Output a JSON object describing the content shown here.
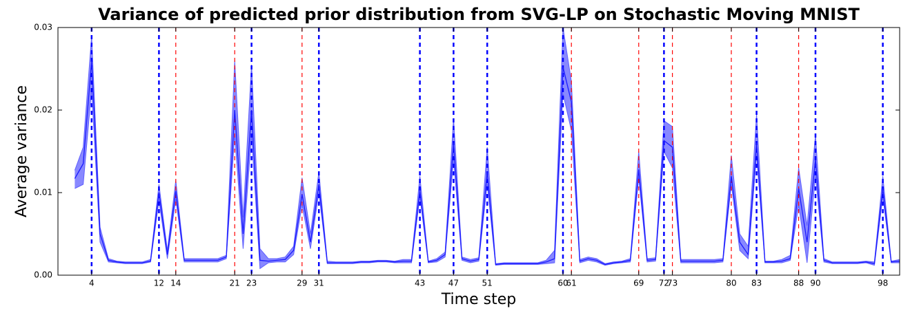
{
  "chart_data": {
    "type": "line",
    "title": "Variance of predicted prior distribution from SVG-LP on Stochastic Moving MNIST",
    "xlabel": "Time step",
    "ylabel": "Average variance",
    "x": [
      2,
      3,
      4,
      5,
      6,
      7,
      8,
      9,
      10,
      11,
      12,
      13,
      14,
      15,
      16,
      17,
      18,
      19,
      20,
      21,
      22,
      23,
      24,
      25,
      26,
      27,
      28,
      29,
      30,
      31,
      32,
      33,
      34,
      35,
      36,
      37,
      38,
      39,
      40,
      41,
      42,
      43,
      44,
      45,
      46,
      47,
      48,
      49,
      50,
      51,
      52,
      53,
      54,
      55,
      56,
      57,
      58,
      59,
      60,
      61,
      62,
      63,
      64,
      65,
      66,
      67,
      68,
      69,
      70,
      71,
      72,
      73,
      74,
      75,
      76,
      77,
      78,
      79,
      80,
      81,
      82,
      83,
      84,
      85,
      86,
      87,
      88,
      89,
      90,
      91,
      92,
      93,
      94,
      95,
      96,
      97,
      98,
      99,
      100
    ],
    "values": [
      0.0117,
      0.0135,
      0.026,
      0.005,
      0.0018,
      0.0016,
      0.0015,
      0.0015,
      0.0015,
      0.0017,
      0.01,
      0.0025,
      0.0102,
      0.0018,
      0.0018,
      0.0018,
      0.0018,
      0.0018,
      0.0022,
      0.02,
      0.005,
      0.02,
      0.0018,
      0.0017,
      0.0018,
      0.0019,
      0.003,
      0.0098,
      0.004,
      0.011,
      0.0015,
      0.0015,
      0.0015,
      0.0015,
      0.0016,
      0.0016,
      0.0017,
      0.0017,
      0.0016,
      0.0017,
      0.0017,
      0.0103,
      0.0016,
      0.0018,
      0.0025,
      0.016,
      0.002,
      0.0017,
      0.0019,
      0.0125,
      0.0013,
      0.0014,
      0.0014,
      0.0014,
      0.0014,
      0.0014,
      0.0016,
      0.002,
      0.0252,
      0.021,
      0.0017,
      0.002,
      0.0018,
      0.0013,
      0.0015,
      0.0016,
      0.0018,
      0.0128,
      0.0018,
      0.0019,
      0.0163,
      0.0155,
      0.0017,
      0.0017,
      0.0017,
      0.0017,
      0.0017,
      0.0018,
      0.012,
      0.004,
      0.0025,
      0.016,
      0.0016,
      0.0016,
      0.0017,
      0.002,
      0.0105,
      0.004,
      0.014,
      0.0018,
      0.0015,
      0.0015,
      0.0015,
      0.0015,
      0.0016,
      0.0014,
      0.0105,
      0.0016,
      0.0017
    ],
    "lower": [
      0.0105,
      0.011,
      0.0225,
      0.004,
      0.0016,
      0.0015,
      0.0014,
      0.0014,
      0.0014,
      0.0016,
      0.009,
      0.002,
      0.0092,
      0.0016,
      0.0016,
      0.0016,
      0.0016,
      0.0016,
      0.002,
      0.017,
      0.0032,
      0.017,
      0.0008,
      0.0015,
      0.0016,
      0.0016,
      0.0025,
      0.0085,
      0.0032,
      0.01,
      0.0014,
      0.0014,
      0.0014,
      0.0014,
      0.0015,
      0.0015,
      0.0016,
      0.0016,
      0.0015,
      0.0015,
      0.0015,
      0.0095,
      0.0015,
      0.0016,
      0.0022,
      0.014,
      0.0018,
      0.0015,
      0.0017,
      0.011,
      0.0012,
      0.0013,
      0.0013,
      0.0013,
      0.0013,
      0.0013,
      0.0014,
      0.0015,
      0.022,
      0.0175,
      0.0015,
      0.0018,
      0.0016,
      0.0012,
      0.0014,
      0.0015,
      0.0016,
      0.0118,
      0.0016,
      0.0017,
      0.015,
      0.013,
      0.0015,
      0.0015,
      0.0015,
      0.0015,
      0.0015,
      0.0016,
      0.011,
      0.003,
      0.002,
      0.0145,
      0.0015,
      0.0015,
      0.0015,
      0.0018,
      0.0085,
      0.0015,
      0.012,
      0.0016,
      0.0014,
      0.0014,
      0.0014,
      0.0014,
      0.0015,
      0.0012,
      0.0095,
      0.0015,
      0.0015
    ],
    "upper": [
      0.0127,
      0.0155,
      0.029,
      0.0058,
      0.002,
      0.0017,
      0.0016,
      0.0016,
      0.0016,
      0.0019,
      0.011,
      0.003,
      0.0115,
      0.002,
      0.002,
      0.002,
      0.002,
      0.002,
      0.0024,
      0.026,
      0.007,
      0.0255,
      0.0032,
      0.002,
      0.002,
      0.0022,
      0.0035,
      0.0118,
      0.005,
      0.0125,
      0.0017,
      0.0016,
      0.0016,
      0.0016,
      0.0017,
      0.0017,
      0.0018,
      0.0018,
      0.0017,
      0.0019,
      0.0019,
      0.012,
      0.0017,
      0.002,
      0.0028,
      0.019,
      0.0022,
      0.0019,
      0.0021,
      0.0155,
      0.0014,
      0.0015,
      0.0015,
      0.0015,
      0.0015,
      0.0015,
      0.0018,
      0.003,
      0.03,
      0.0235,
      0.0019,
      0.0022,
      0.002,
      0.0014,
      0.0016,
      0.0017,
      0.002,
      0.015,
      0.002,
      0.0021,
      0.0187,
      0.018,
      0.0019,
      0.0019,
      0.0019,
      0.0019,
      0.0019,
      0.002,
      0.0145,
      0.005,
      0.0035,
      0.0195,
      0.0017,
      0.0017,
      0.0019,
      0.0024,
      0.013,
      0.006,
      0.017,
      0.002,
      0.0016,
      0.0016,
      0.0016,
      0.0016,
      0.0017,
      0.0016,
      0.012,
      0.0017,
      0.0019
    ],
    "color": "#1a1aff",
    "band_color": "#6060ff",
    "markers": [
      {
        "x": [
          4,
          12,
          23,
          31,
          43,
          47,
          51,
          60,
          72,
          83,
          90,
          98
        ],
        "color": "#0000ff",
        "linewidth": 2.5
      },
      {
        "x": [
          14,
          21,
          29,
          61,
          69,
          73,
          80,
          88
        ],
        "color": "#ff0000",
        "linewidth": 1.2
      }
    ],
    "xlim": [
      0,
      100
    ],
    "xticks": [
      4,
      12,
      14,
      21,
      23,
      29,
      31,
      43,
      47,
      51,
      60,
      61,
      69,
      72,
      73,
      80,
      83,
      88,
      90,
      98
    ],
    "ylim": [
      0,
      0.03
    ],
    "yticks": [
      {
        "value": 0,
        "label": "0.00"
      },
      {
        "value": 0.01,
        "label": "0.01"
      },
      {
        "value": 0.02,
        "label": "0.02"
      },
      {
        "value": 0.03,
        "label": "0.03"
      }
    ]
  }
}
